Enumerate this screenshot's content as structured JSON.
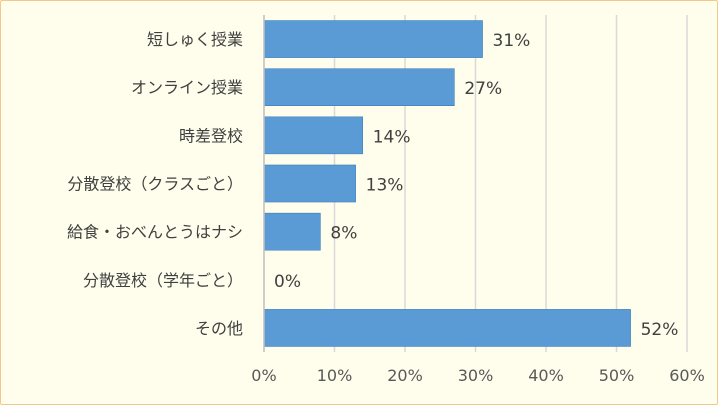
{
  "chart_data": {
    "type": "bar",
    "orientation": "horizontal",
    "categories": [
      "短しゅく授業",
      "オンライン授業",
      "時差登校",
      "分散登校（クラスごと）",
      "給食・おべんとうはナシ",
      "分散登校（学年ごと）",
      "その他"
    ],
    "values": [
      31,
      27,
      14,
      13,
      8,
      0,
      52
    ],
    "value_labels": [
      "31%",
      "27%",
      "14%",
      "13%",
      "8%",
      "0%",
      "52%"
    ],
    "xlim": [
      0,
      60
    ],
    "x_ticks": [
      0,
      10,
      20,
      30,
      40,
      50,
      60
    ],
    "x_tick_labels": [
      "0%",
      "10%",
      "20%",
      "30%",
      "40%",
      "50%",
      "60%"
    ],
    "grid": "vertical",
    "legend": "none",
    "title": "",
    "xlabel": "",
    "ylabel": "",
    "colors": {
      "bar": "#5b9bd5",
      "bar_edge": "#2e75b6",
      "grid": "#d9d9d9",
      "axis": "#bfbfbf",
      "background": "#fffdec"
    }
  }
}
